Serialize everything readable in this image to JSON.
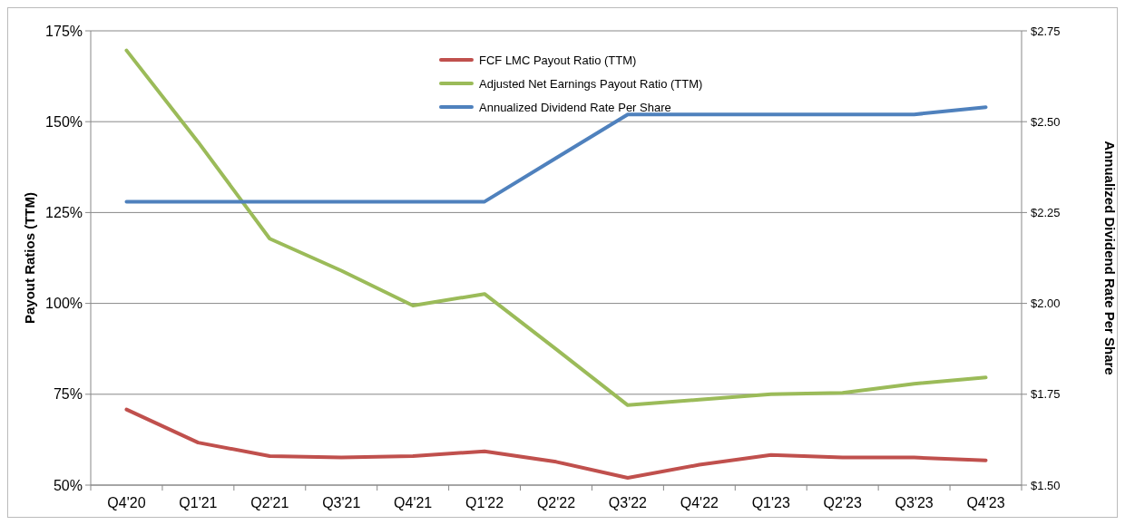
{
  "chart_data": {
    "type": "line",
    "categories": [
      "Q4'20",
      "Q1'21",
      "Q2'21",
      "Q3'21",
      "Q4'21",
      "Q1'22",
      "Q2'22",
      "Q3'22",
      "Q4'22",
      "Q1'23",
      "Q2'23",
      "Q3'23",
      "Q4'23"
    ],
    "series": [
      {
        "name": "FCF LMC Payout Ratio (TTM)",
        "color": "#c0504d",
        "values": [
          70.8,
          61.7,
          58,
          57.6,
          58,
          59.3,
          56.4,
          52,
          55.6,
          58.3,
          57.6,
          57.6,
          56.8
        ]
      },
      {
        "name": "Adjusted Net Earnings Payout Ratio (TTM)",
        "color": "#9bbb59",
        "values": [
          169.6,
          144.4,
          117.8,
          109,
          99.4,
          102.6,
          87.4,
          72,
          73.5,
          75,
          75.4,
          77.9,
          79.6
        ]
      },
      {
        "name": "Annualized Dividend Rate Per Share",
        "color": "#4f81bd",
        "axis": "y2",
        "values": [
          2.28,
          2.28,
          2.28,
          2.28,
          2.28,
          2.28,
          2.4,
          2.52,
          2.52,
          2.52,
          2.52,
          2.52,
          2.54
        ]
      }
    ],
    "ylabel": "Payout Ratios (TTM)",
    "y2label": "Annualized Dividend Rate Per Share",
    "ylim": [
      50,
      175
    ],
    "yticks": [
      {
        "value": 50,
        "label": "50%"
      },
      {
        "value": 75,
        "label": "75%"
      },
      {
        "value": 100,
        "label": "100%"
      },
      {
        "value": 125,
        "label": "125%"
      },
      {
        "value": 150,
        "label": "150%"
      },
      {
        "value": 175,
        "label": "175%"
      }
    ],
    "y2lim": [
      1.5,
      2.75
    ],
    "y2ticks": [
      {
        "value": 1.5,
        "label": "$1.50"
      },
      {
        "value": 1.75,
        "label": "$1.75"
      },
      {
        "value": 2,
        "label": "$2.00"
      },
      {
        "value": 2.25,
        "label": "$2.25"
      },
      {
        "value": 2.5,
        "label": "$2.50"
      },
      {
        "value": 2.75,
        "label": "$2.75"
      }
    ],
    "grid": "y",
    "legend": "top",
    "marker": "none",
    "line_style": "solid"
  }
}
